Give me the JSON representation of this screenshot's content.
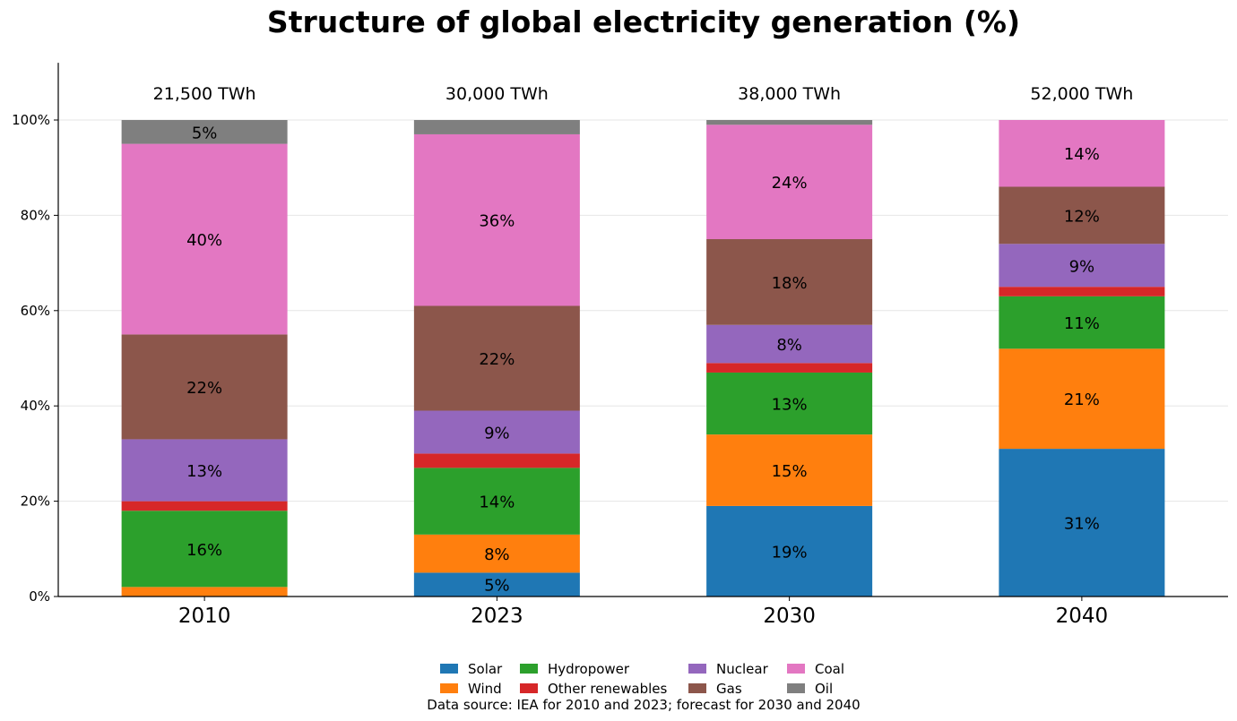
{
  "chart_data": {
    "type": "bar",
    "stacked": true,
    "title": "Structure of global electricity generation (%)",
    "xlabel": "",
    "ylabel": "",
    "ylim": [
      0,
      112
    ],
    "y_ticks": [
      0,
      20,
      40,
      60,
      80,
      100
    ],
    "y_tick_labels": [
      "0%",
      "20%",
      "40%",
      "60%",
      "80%",
      "100%"
    ],
    "grid": "y",
    "categories": [
      "2010",
      "2023",
      "2030",
      "2040"
    ],
    "totals": [
      "21,500 TWh",
      "30,000 TWh",
      "38,000 TWh",
      "52,000 TWh"
    ],
    "series": [
      {
        "name": "Solar",
        "color": "#1f77b4",
        "values": [
          0,
          5,
          19,
          31
        ],
        "labels": [
          "",
          "5%",
          "19%",
          "31%"
        ]
      },
      {
        "name": "Wind",
        "color": "#ff7f0e",
        "values": [
          2,
          8,
          15,
          21
        ],
        "labels": [
          "",
          "8%",
          "15%",
          "21%"
        ]
      },
      {
        "name": "Hydropower",
        "color": "#2ca02c",
        "values": [
          16,
          14,
          13,
          11
        ],
        "labels": [
          "16%",
          "14%",
          "13%",
          "11%"
        ]
      },
      {
        "name": "Other renewables",
        "color": "#d62728",
        "values": [
          2,
          3,
          2,
          2
        ],
        "labels": [
          "",
          "",
          "",
          ""
        ]
      },
      {
        "name": "Nuclear",
        "color": "#9467bd",
        "values": [
          13,
          9,
          8,
          9
        ],
        "labels": [
          "13%",
          "9%",
          "8%",
          "9%"
        ]
      },
      {
        "name": "Gas",
        "color": "#8c564b",
        "values": [
          22,
          22,
          18,
          12
        ],
        "labels": [
          "22%",
          "22%",
          "18%",
          "12%"
        ]
      },
      {
        "name": "Coal",
        "color": "#e377c2",
        "values": [
          40,
          36,
          24,
          14
        ],
        "labels": [
          "40%",
          "36%",
          "24%",
          "14%"
        ]
      },
      {
        "name": "Oil",
        "color": "#7f7f7f",
        "values": [
          5,
          3,
          1,
          0
        ],
        "labels": [
          "5%",
          "",
          "",
          ""
        ]
      }
    ],
    "legend_position": "bottom-center",
    "source_note": "Data source: IEA for 2010 and 2023; forecast for 2030 and 2040"
  }
}
